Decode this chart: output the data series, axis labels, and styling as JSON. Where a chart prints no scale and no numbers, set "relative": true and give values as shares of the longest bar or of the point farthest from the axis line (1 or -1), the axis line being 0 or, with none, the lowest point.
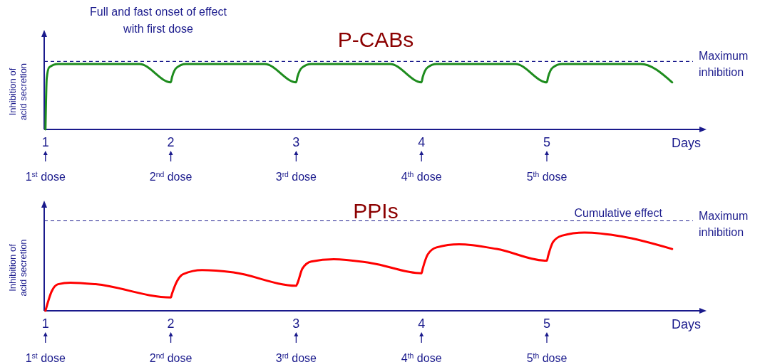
{
  "chart_data": [
    {
      "type": "line",
      "title": "P-CABs",
      "xlabel": "Days",
      "ylabel": "Inhibition of acid secretion",
      "relative": true,
      "xlim": [
        0.99,
        6.24
      ],
      "xticks": [
        1,
        2,
        3,
        4,
        5
      ],
      "series": [
        {
          "color": "#1e8c1e",
          "x": [
            1.0,
            1.01,
            1.03,
            1.1,
            1.75,
            2.0,
            2.01,
            2.05,
            2.12,
            2.75,
            3.0,
            3.01,
            3.05,
            3.12,
            3.75,
            4.0,
            4.01,
            4.05,
            4.12,
            4.75,
            5.0,
            5.01,
            5.05,
            5.12,
            5.75,
            6.0
          ],
          "values": [
            0,
            0.78,
            0.95,
            1,
            1,
            0.72,
            0.8,
            0.95,
            1,
            1,
            0.72,
            0.8,
            0.95,
            1,
            1,
            0.72,
            0.8,
            0.95,
            1,
            1,
            0.72,
            0.8,
            0.95,
            1,
            1,
            0.72
          ]
        }
      ],
      "ref_lines": [
        {
          "axis": "y",
          "value": 1.04,
          "label": "Maximum inhibition",
          "color": "#1a1a8c",
          "line_style": "dashed"
        }
      ],
      "annotations": [
        "Full and fast onset of effect with first dose",
        "1$^{st}$ dose",
        "2$^{nd}$ dose",
        "3$^{rd}$ dose",
        "4$^{th}$ dose",
        "5$^{th}$ dose"
      ]
    },
    {
      "type": "line",
      "title": "PPIs",
      "xlabel": "Days",
      "ylabel": "Inhibition of acid secretion",
      "relative": true,
      "xlim": [
        0.99,
        6.24
      ],
      "xticks": [
        1,
        2,
        3,
        4,
        5
      ],
      "series": [
        {
          "color": "#ff0000",
          "x": [
            1.0,
            1.05,
            1.1,
            1.2,
            1.4,
            2.0,
            2.01,
            2.05,
            2.1,
            2.25,
            2.5,
            3.0,
            3.01,
            3.05,
            3.12,
            3.3,
            3.6,
            4.0,
            4.01,
            4.05,
            4.12,
            4.3,
            4.6,
            5.0,
            5.01,
            5.05,
            5.12,
            5.3,
            5.6,
            6.0
          ],
          "values": [
            0,
            0.25,
            0.34,
            0.36,
            0.34,
            0.17,
            0.22,
            0.38,
            0.47,
            0.52,
            0.49,
            0.32,
            0.35,
            0.54,
            0.63,
            0.66,
            0.61,
            0.48,
            0.54,
            0.72,
            0.81,
            0.85,
            0.79,
            0.64,
            0.7,
            0.88,
            0.96,
            1,
            0.95,
            0.79
          ]
        }
      ],
      "ref_lines": [
        {
          "axis": "y",
          "value": 1.15,
          "label": "Maximum inhibition",
          "color": "#1a1a8c",
          "line_style": "dashed"
        }
      ],
      "annotations": [
        {
          "text": "Cumulative effect",
          "x": 5.57,
          "y": 1.15
        },
        "1$^{st}$ dose",
        "2$^{nd}$ dose",
        "3$^{rd}$ dose",
        "4$^{th}$ dose",
        "5$^{th}$ dose"
      ]
    }
  ]
}
